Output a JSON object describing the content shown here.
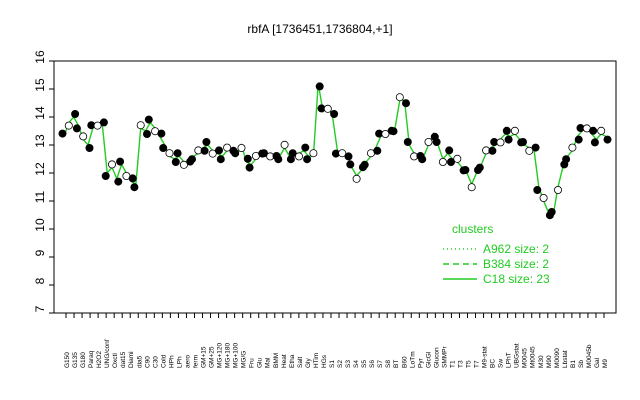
{
  "chart_data": {
    "type": "line",
    "title": "rbfA [1736451,1736804,+1]",
    "xlabel": "",
    "ylabel": "",
    "ylim": [
      7,
      16
    ],
    "yticks": [
      7,
      8,
      9,
      10,
      11,
      12,
      13,
      14,
      15,
      16
    ],
    "x_tick_labels": [
      "G150",
      "G135",
      "G180",
      "Paraq",
      "H2O2",
      "UNG/conf",
      "Oxctl",
      "dat15",
      "Diami",
      "dia5",
      "C90",
      "C30",
      "Cold",
      "HPh",
      "LPh",
      "aero",
      "ferm",
      "GM+15",
      "GM+25",
      "MG+120",
      "MG+180",
      "MG+100",
      "MG/G",
      "Fru",
      "Glu",
      "Mal",
      "BMM",
      "Heat",
      "Etha",
      "Salt",
      "Gly",
      "HTim",
      "HGs",
      "S1",
      "S2",
      "S3",
      "S4",
      "S5",
      "S6",
      "S7",
      "S8",
      "BT",
      "B60",
      "LoTm",
      "Pyr",
      "GlcGl",
      "Glucon",
      "SMMPr",
      "T1",
      "T3",
      "T5",
      "T7",
      "M9-stat",
      "BC",
      "Sw",
      "LPhT",
      "UBGstat",
      "M0045",
      "Mt0045",
      "M30",
      "M90",
      "M0090",
      "Lbstat",
      "B1",
      "Sb",
      "M0045b",
      "Gal",
      "M9"
    ],
    "series_markers": "filled black = conditions with reported values; open white = paired replicate",
    "series": [
      {
        "name": "A962 size: 2",
        "style": "dotted",
        "color": "#22cc22",
        "values": []
      },
      {
        "name": "B384 size: 2",
        "style": "dashed",
        "color": "#22cc22",
        "values": []
      },
      {
        "name": "C18 size: 23",
        "style": "solid",
        "color": "#22cc22",
        "values": []
      }
    ],
    "profile": [
      [
        1,
        13.3
      ],
      [
        2,
        13.8
      ],
      [
        3,
        14.0
      ],
      [
        4,
        13.7
      ],
      [
        5,
        13.2
      ],
      [
        6,
        13.0
      ],
      [
        7,
        13.6
      ],
      [
        8,
        13.8
      ],
      [
        9,
        13.7
      ],
      [
        10,
        12.0
      ],
      [
        11,
        12.2
      ],
      [
        12,
        11.8
      ],
      [
        13,
        12.3
      ],
      [
        14,
        12.0
      ],
      [
        15,
        11.7
      ],
      [
        16,
        11.6
      ],
      [
        17,
        13.6
      ],
      [
        18,
        13.5
      ],
      [
        19,
        13.8
      ],
      [
        20,
        13.6
      ],
      [
        21,
        13.3
      ],
      [
        22,
        13.0
      ],
      [
        23,
        12.6
      ],
      [
        24,
        12.5
      ],
      [
        25,
        12.6
      ],
      [
        26,
        12.4
      ],
      [
        27,
        12.3
      ],
      [
        28,
        12.6
      ],
      [
        29,
        12.7
      ],
      [
        30,
        12.9
      ],
      [
        31,
        13.0
      ],
      [
        32,
        12.8
      ],
      [
        33,
        12.7
      ],
      [
        34,
        12.6
      ],
      [
        35,
        12.8
      ],
      [
        36,
        12.9
      ],
      [
        37,
        12.6
      ],
      [
        38,
        13.0
      ],
      [
        39,
        12.4
      ],
      [
        40,
        12.3
      ],
      [
        41,
        12.5
      ],
      [
        42,
        12.8
      ],
      [
        43,
        12.6
      ],
      [
        44,
        12.7
      ],
      [
        45,
        12.5
      ],
      [
        46,
        12.6
      ],
      [
        47,
        12.9
      ],
      [
        48,
        12.6
      ],
      [
        49,
        12.6
      ],
      [
        50,
        12.7
      ],
      [
        51,
        12.8
      ],
      [
        52,
        12.6
      ],
      [
        53,
        12.6
      ],
      [
        54,
        15.2
      ],
      [
        55,
        14.2
      ],
      [
        56,
        14.4
      ],
      [
        57,
        14.0
      ],
      [
        58,
        12.8
      ],
      [
        59,
        12.6
      ],
      [
        60,
        12.7
      ],
      [
        61,
        12.2
      ],
      [
        62,
        11.9
      ],
      [
        63,
        12.1
      ],
      [
        64,
        12.4
      ],
      [
        65,
        12.6
      ],
      [
        66,
        12.9
      ],
      [
        67,
        13.3
      ],
      [
        68,
        13.5
      ],
      [
        69,
        13.4
      ],
      [
        70,
        13.6
      ],
      [
        71,
        14.6
      ],
      [
        72,
        14.6
      ],
      [
        73,
        13.0
      ],
      [
        74,
        12.7
      ],
      [
        75,
        12.5
      ],
      [
        76,
        12.6
      ],
      [
        77,
        13.0
      ],
      [
        78,
        13.4
      ],
      [
        79,
        13.0
      ],
      [
        80,
        12.5
      ],
      [
        81,
        12.7
      ],
      [
        82,
        12.5
      ],
      [
        83,
        12.4
      ],
      [
        84,
        12.2
      ],
      [
        85,
        12.0
      ],
      [
        86,
        11.6
      ],
      [
        87,
        12.0
      ],
      [
        88,
        12.3
      ],
      [
        89,
        12.7
      ],
      [
        90,
        12.9
      ],
      [
        91,
        13.0
      ],
      [
        92,
        13.2
      ],
      [
        93,
        13.4
      ],
      [
        94,
        13.3
      ],
      [
        95,
        13.4
      ],
      [
        96,
        13.2
      ],
      [
        97,
        13.0
      ],
      [
        98,
        12.9
      ],
      [
        99,
        12.8
      ],
      [
        100,
        11.5
      ],
      [
        101,
        11.0
      ],
      [
        102,
        10.6
      ],
      [
        103,
        10.5
      ],
      [
        104,
        11.5
      ],
      [
        105,
        12.2
      ],
      [
        106,
        12.6
      ],
      [
        107,
        12.8
      ],
      [
        108,
        13.3
      ],
      [
        109,
        13.5
      ],
      [
        110,
        13.7
      ],
      [
        111,
        13.4
      ],
      [
        112,
        13.2
      ],
      [
        113,
        13.4
      ],
      [
        114,
        13.3
      ]
    ]
  },
  "legend": {
    "title": "clusters"
  }
}
